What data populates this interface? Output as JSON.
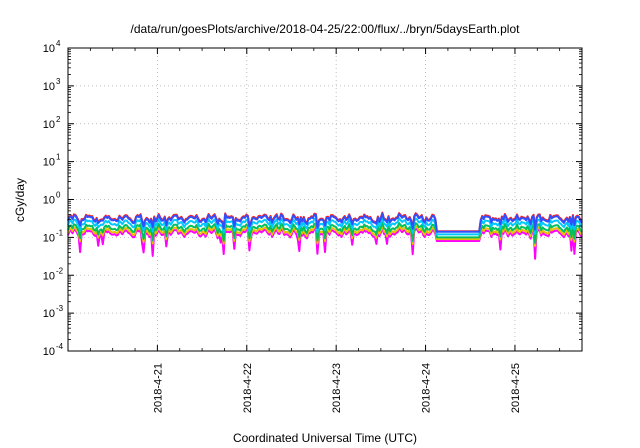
{
  "chart_data": {
    "type": "line",
    "title": "/data/run/goesPlots/archive/2018-04-25/22:00/flux/../bryn/5daysEarth.plot",
    "xlabel": "Coordinated Universal Time (UTC)",
    "ylabel": "cGy/day",
    "x_tick_labels": [
      "2018-4-21",
      "2018-4-22",
      "2018-4-23",
      "2018-4-24",
      "2018-4-25"
    ],
    "x_range_days": [
      0,
      5.75
    ],
    "x_tick_days": [
      1,
      2,
      3,
      4,
      5
    ],
    "y_scale": "log",
    "y_range": [
      0.0001,
      10000
    ],
    "y_ticks": [
      {
        "base": "10",
        "exp": "-4",
        "value": 0.0001
      },
      {
        "base": "10",
        "exp": "-3",
        "value": 0.001
      },
      {
        "base": "10",
        "exp": "-2",
        "value": 0.01
      },
      {
        "base": "10",
        "exp": "-1",
        "value": 0.1
      },
      {
        "base": "10",
        "exp": "0",
        "value": 1
      },
      {
        "base": "10",
        "exp": "1",
        "value": 10
      },
      {
        "base": "10",
        "exp": "2",
        "value": 100
      },
      {
        "base": "10",
        "exp": "3",
        "value": 1000
      },
      {
        "base": "10",
        "exp": "4",
        "value": 10000
      }
    ],
    "grid": true,
    "series": [
      {
        "color": "#ff00ff",
        "base_value": 0.13
      },
      {
        "color": "#e8c000",
        "base_value": 0.15
      },
      {
        "color": "#00c060",
        "base_value": 0.18
      },
      {
        "color": "#00c8ff",
        "base_value": 0.24
      },
      {
        "color": "#ff2020",
        "base_value": 0.33
      },
      {
        "color": "#3050ff",
        "base_value": 0.31
      }
    ],
    "gap": {
      "start_day": 4.12,
      "end_day": 4.6,
      "values": [
        0.08,
        0.09,
        0.1,
        0.12,
        0.145,
        0.14
      ]
    }
  }
}
